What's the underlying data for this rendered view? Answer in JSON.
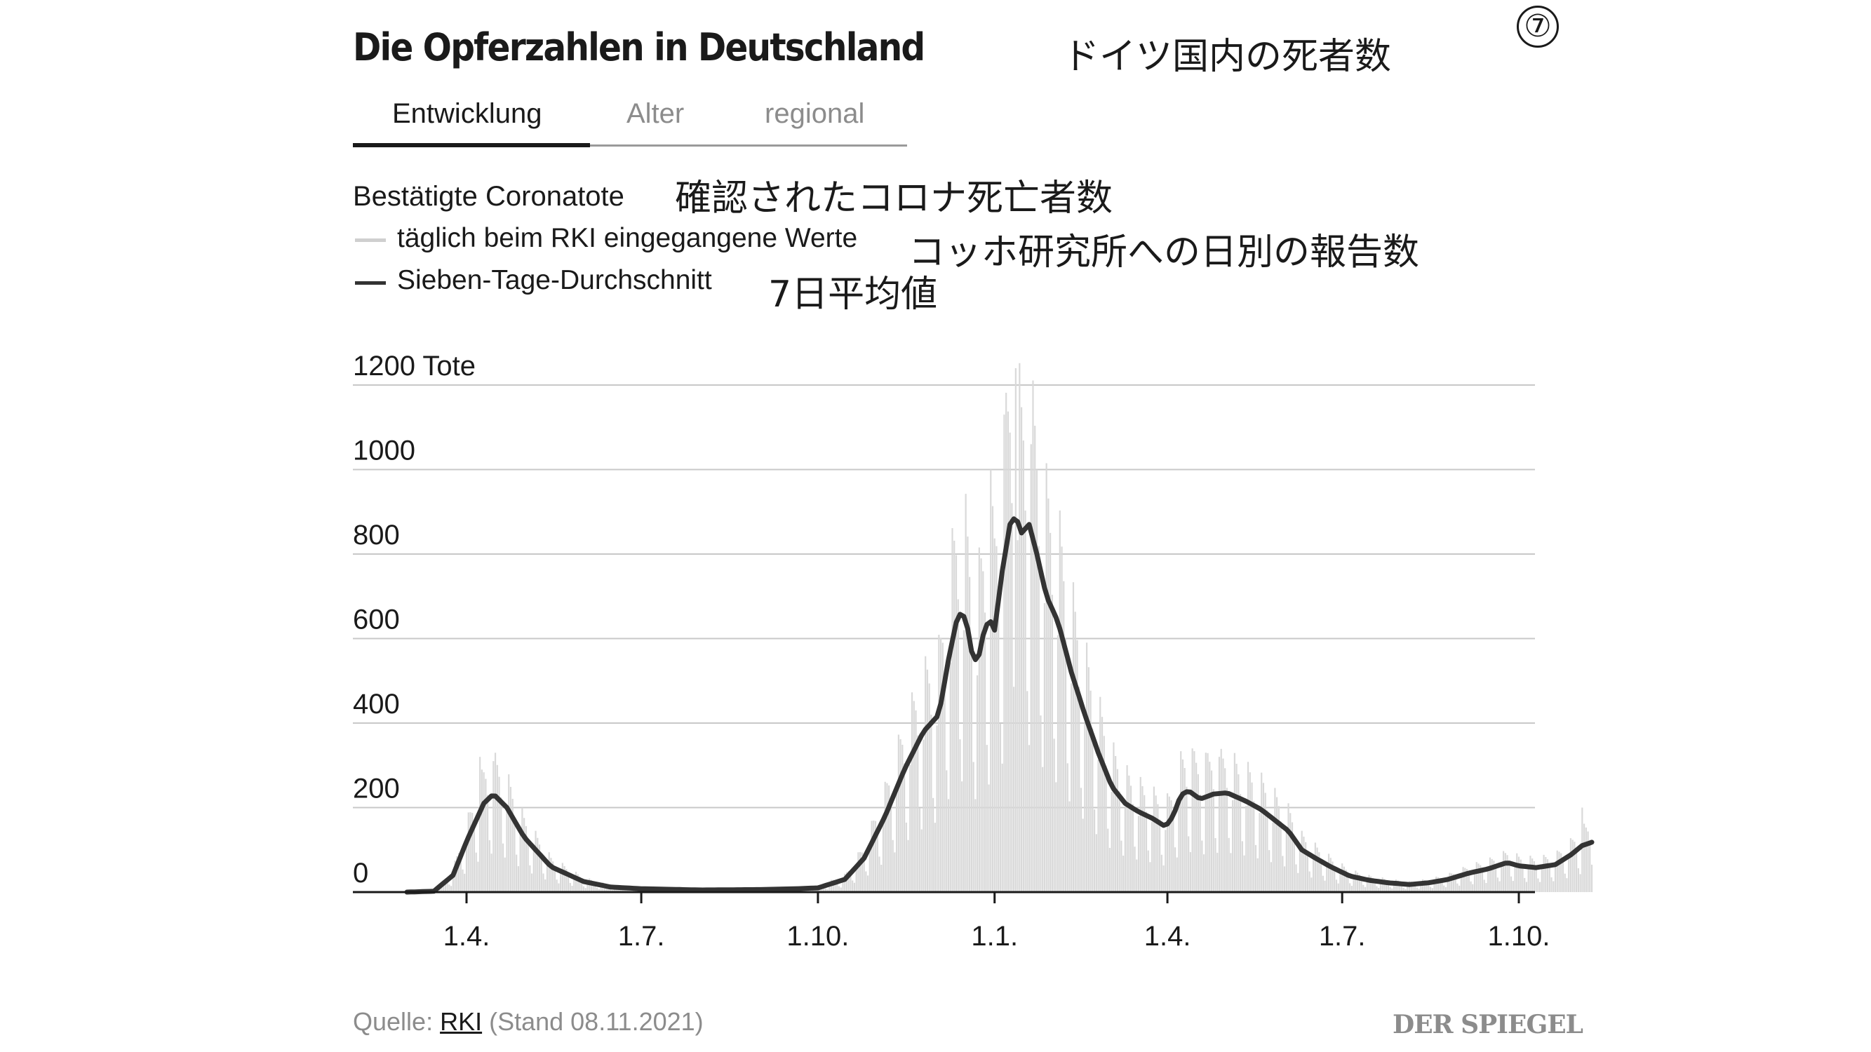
{
  "header": {
    "title": "Die Opferzahlen in Deutschland",
    "title_ja": "ドイツ国内の死者数",
    "badge": "⑦"
  },
  "tabs": [
    {
      "label": "Entwicklung",
      "active": true
    },
    {
      "label": "Alter",
      "active": false
    },
    {
      "label": "regional",
      "active": false
    }
  ],
  "subtitle": {
    "de": "Bestätigte Coronatote",
    "ja": "確認されたコロナ死亡者数"
  },
  "legend": [
    {
      "label": "täglich beim RKI eingegangene Werte",
      "label_ja": "コッホ研究所への日別の報告数",
      "color": "#d9d9d9"
    },
    {
      "label": "Sieben-Tage-Durchschnitt",
      "label_ja": "7日平均値",
      "color": "#333333"
    }
  ],
  "chart_data": {
    "type": "line",
    "y_unit_label": "1200 Tote",
    "yticks": [
      "0",
      "200",
      "400",
      "600",
      "800",
      "1000"
    ],
    "ylim": [
      0,
      1200
    ],
    "grid": true,
    "x_tick_labels": [
      "1.4.",
      "1.7.",
      "1.10.",
      "1.1.",
      "1.4.",
      "1.7.",
      "1.10."
    ],
    "x_tick_dates": [
      "2020-04-01",
      "2020-07-01",
      "2020-10-01",
      "2021-01-01",
      "2021-04-01",
      "2021-07-01",
      "2021-10-01"
    ],
    "x_range": [
      "2020-03-01",
      "2021-11-08"
    ],
    "series": [
      {
        "name": "Sieben-Tage-Durchschnitt",
        "color": "#333333",
        "points": [
          [
            "2020-03-01",
            0
          ],
          [
            "2020-03-15",
            2
          ],
          [
            "2020-03-25",
            40
          ],
          [
            "2020-04-01",
            120
          ],
          [
            "2020-04-10",
            210
          ],
          [
            "2020-04-15",
            232
          ],
          [
            "2020-04-22",
            200
          ],
          [
            "2020-05-01",
            130
          ],
          [
            "2020-05-15",
            60
          ],
          [
            "2020-06-01",
            25
          ],
          [
            "2020-06-15",
            12
          ],
          [
            "2020-07-01",
            8
          ],
          [
            "2020-08-01",
            5
          ],
          [
            "2020-09-01",
            6
          ],
          [
            "2020-09-20",
            8
          ],
          [
            "2020-10-01",
            10
          ],
          [
            "2020-10-15",
            30
          ],
          [
            "2020-10-25",
            80
          ],
          [
            "2020-11-05",
            180
          ],
          [
            "2020-11-15",
            290
          ],
          [
            "2020-11-25",
            380
          ],
          [
            "2020-12-03",
            420
          ],
          [
            "2020-12-08",
            550
          ],
          [
            "2020-12-13",
            660
          ],
          [
            "2020-12-17",
            650
          ],
          [
            "2020-12-20",
            570
          ],
          [
            "2020-12-23",
            540
          ],
          [
            "2020-12-27",
            630
          ],
          [
            "2020-12-30",
            640
          ],
          [
            "2021-01-01",
            620
          ],
          [
            "2021-01-05",
            760
          ],
          [
            "2021-01-09",
            870
          ],
          [
            "2021-01-12",
            890
          ],
          [
            "2021-01-15",
            850
          ],
          [
            "2021-01-19",
            870
          ],
          [
            "2021-01-23",
            800
          ],
          [
            "2021-01-28",
            700
          ],
          [
            "2021-02-03",
            640
          ],
          [
            "2021-02-10",
            520
          ],
          [
            "2021-02-17",
            420
          ],
          [
            "2021-02-24",
            330
          ],
          [
            "2021-03-03",
            250
          ],
          [
            "2021-03-10",
            210
          ],
          [
            "2021-03-17",
            190
          ],
          [
            "2021-03-24",
            175
          ],
          [
            "2021-03-31",
            155
          ],
          [
            "2021-04-04",
            180
          ],
          [
            "2021-04-08",
            230
          ],
          [
            "2021-04-12",
            240
          ],
          [
            "2021-04-18",
            220
          ],
          [
            "2021-04-25",
            232
          ],
          [
            "2021-05-02",
            235
          ],
          [
            "2021-05-12",
            215
          ],
          [
            "2021-05-20",
            195
          ],
          [
            "2021-05-27",
            170
          ],
          [
            "2021-06-03",
            145
          ],
          [
            "2021-06-10",
            100
          ],
          [
            "2021-06-18",
            78
          ],
          [
            "2021-06-25",
            60
          ],
          [
            "2021-07-05",
            38
          ],
          [
            "2021-07-15",
            28
          ],
          [
            "2021-07-25",
            22
          ],
          [
            "2021-08-05",
            18
          ],
          [
            "2021-08-15",
            22
          ],
          [
            "2021-08-25",
            30
          ],
          [
            "2021-09-05",
            45
          ],
          [
            "2021-09-15",
            55
          ],
          [
            "2021-09-25",
            70
          ],
          [
            "2021-10-01",
            62
          ],
          [
            "2021-10-10",
            58
          ],
          [
            "2021-10-20",
            65
          ],
          [
            "2021-10-28",
            88
          ],
          [
            "2021-11-03",
            110
          ],
          [
            "2021-11-08",
            118
          ]
        ]
      },
      {
        "name": "täglich beim RKI eingegangene Werte",
        "color": "#d9d9d9",
        "peak_points": [
          [
            "2020-04-08",
            320
          ],
          [
            "2020-04-15",
            310
          ],
          [
            "2020-12-30",
            1000
          ],
          [
            "2021-01-06",
            1130
          ],
          [
            "2021-01-12",
            1240
          ],
          [
            "2021-01-15",
            1100
          ],
          [
            "2021-01-20",
            1060
          ],
          [
            "2021-04-14",
            340
          ],
          [
            "2021-04-21",
            330
          ],
          [
            "2021-04-28",
            320
          ],
          [
            "2021-11-03",
            200
          ]
        ]
      }
    ]
  },
  "footer": {
    "source_prefix": "Quelle: ",
    "source_link": "RKI",
    "source_suffix": " (Stand 08.11.2021)",
    "brand": "DER SPIEGEL"
  }
}
